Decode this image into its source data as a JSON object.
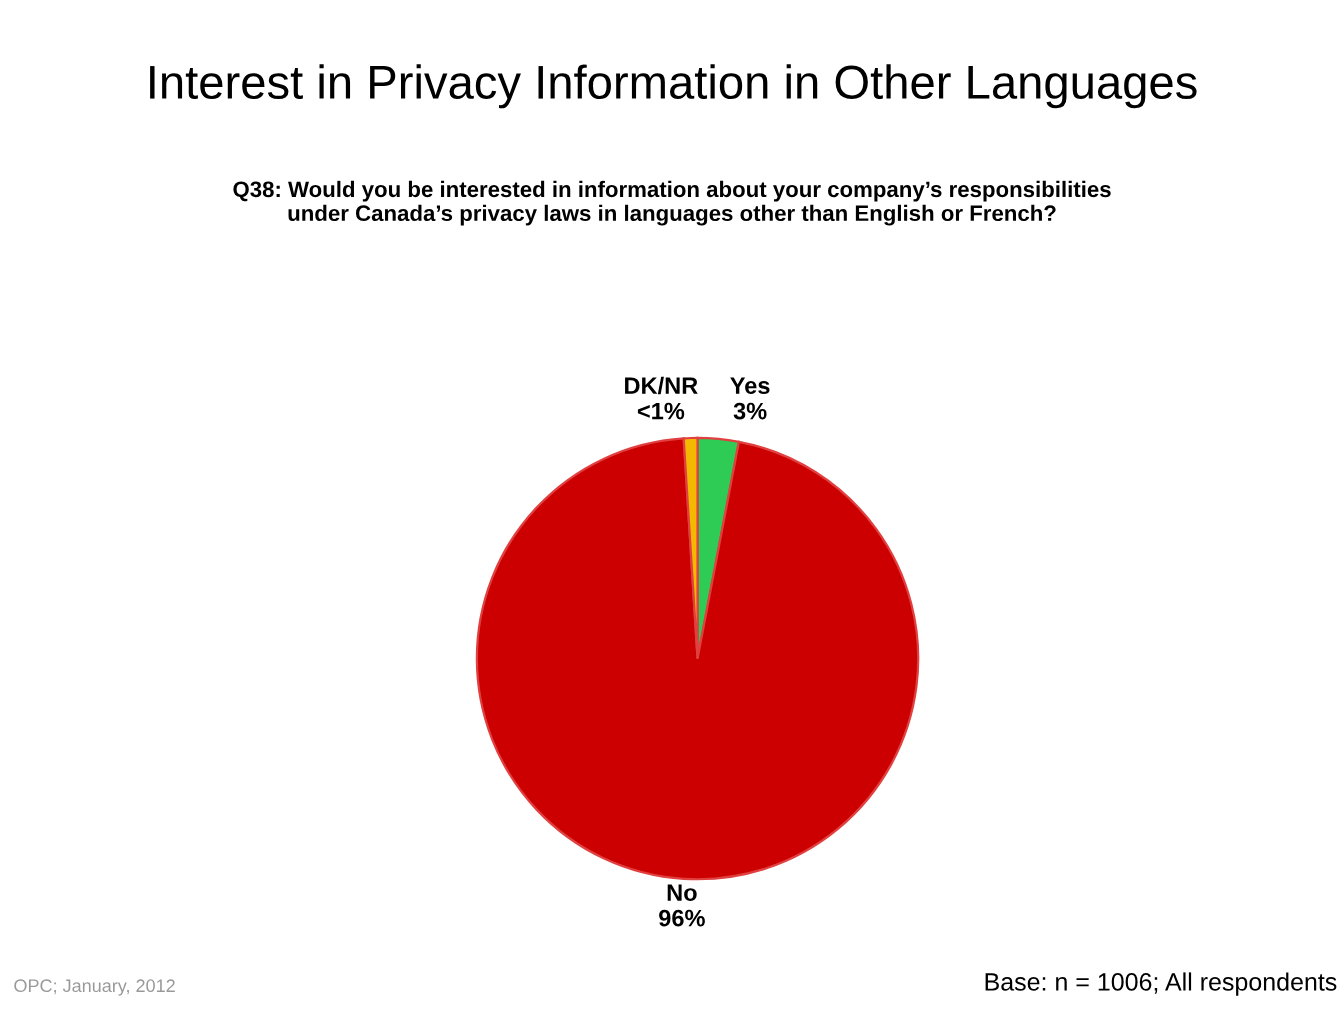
{
  "chart_data": {
    "type": "pie",
    "title": "Interest in Privacy Information in Other Languages",
    "subtitle": "Q38: Would you be interested in information about your company’s responsibilities\nunder Canada’s privacy laws in languages other than English or French?",
    "categories": [
      "Yes",
      "No",
      "DK/NR"
    ],
    "values": [
      3,
      96,
      1
    ],
    "value_labels": [
      "3%",
      "96%",
      "<1%"
    ],
    "colors": [
      "#2ecc55",
      "#cc0000",
      "#f5b800"
    ],
    "annotations": [
      "OPC; January, 2012",
      "Base: n = 1006; All respondents"
    ]
  }
}
